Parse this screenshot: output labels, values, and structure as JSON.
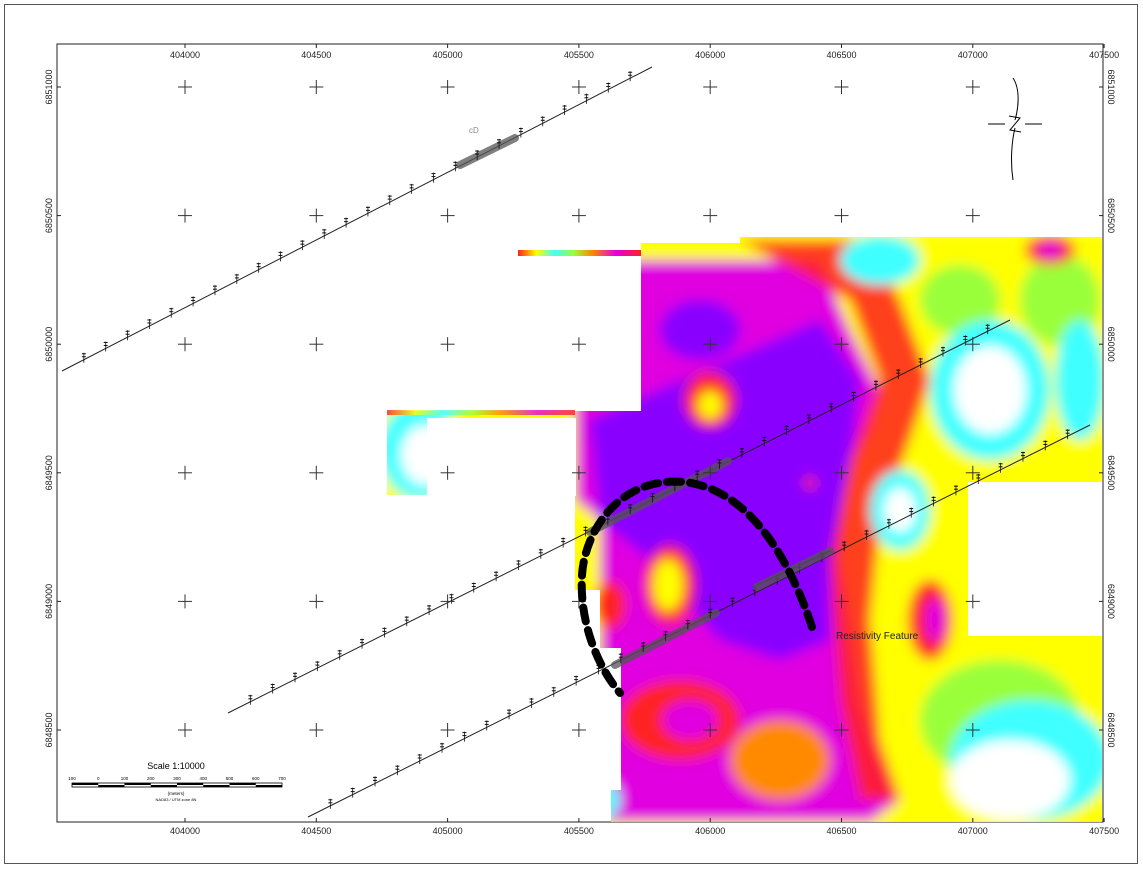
{
  "map": {
    "x_ticks": [
      "404000",
      "404500",
      "405000",
      "405500",
      "406000",
      "406500",
      "407000",
      "407500"
    ],
    "y_ticks_left": [
      "6851000",
      "6850500",
      "6850000",
      "6849500",
      "6849000",
      "6848500"
    ],
    "y_ticks_right": [
      "6851000",
      "6850500",
      "6850000",
      "6849500",
      "6849000",
      "6848500"
    ],
    "x_range": [
      403520,
      407560
    ],
    "y_range": [
      6848280,
      6851080
    ],
    "feature_label": "Resistivity Feature",
    "profile_label": "cD",
    "north_symbol": "north-arrow"
  },
  "scale_bar": {
    "title": "Scale 1:10000",
    "ticks": [
      "100",
      "0",
      "100",
      "200",
      "300",
      "400",
      "500",
      "600",
      "700"
    ],
    "units": "(meters)",
    "projection": "NAD83 / UTM zone 8N"
  },
  "colors": {
    "ellipse": "#000000",
    "line": "#222222",
    "grid_cross": "#333333",
    "palette": [
      "#8a00ff",
      "#e000e0",
      "#ff2020",
      "#ff8a00",
      "#ffff00",
      "#9aff3a",
      "#40ffff",
      "#ffffff"
    ]
  }
}
